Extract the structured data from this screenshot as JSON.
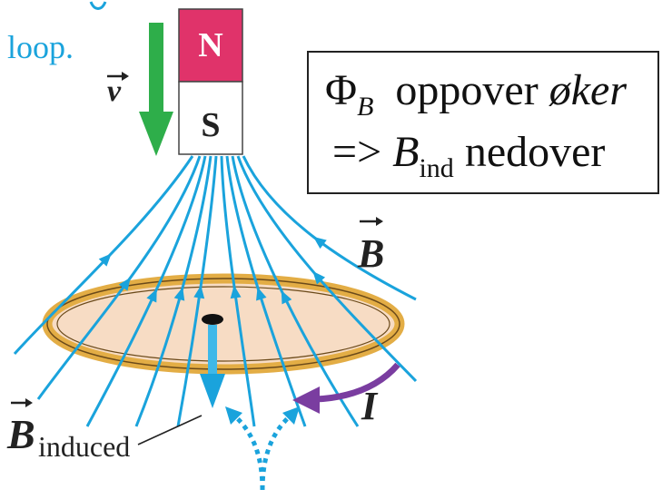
{
  "labels": {
    "caption_fragment": "loop.",
    "velocity": "v",
    "north_pole": "N",
    "south_pole": "S",
    "field": "B",
    "induced_field_symbol": "B",
    "induced_field_subscript": "induced",
    "current": "I"
  },
  "annotation": {
    "flux_symbol": "Φ",
    "flux_subscript": "B",
    "flux_text": "oppover",
    "flux_change": "øker",
    "arrow": "=>",
    "induced_symbol": "B",
    "induced_subscript": "ind",
    "induced_direction": "nedover"
  },
  "colors": {
    "field_lines": "#1aa3dc",
    "velocity_arrow": "#2eae4a",
    "north_pole": "#e0336a",
    "south_pole": "#ffffff",
    "loop_fill": "#f7dcc4",
    "loop_ring": "#e3ad45",
    "current_arrow": "#7a3da0",
    "caption_text": "#1aa3dc"
  }
}
